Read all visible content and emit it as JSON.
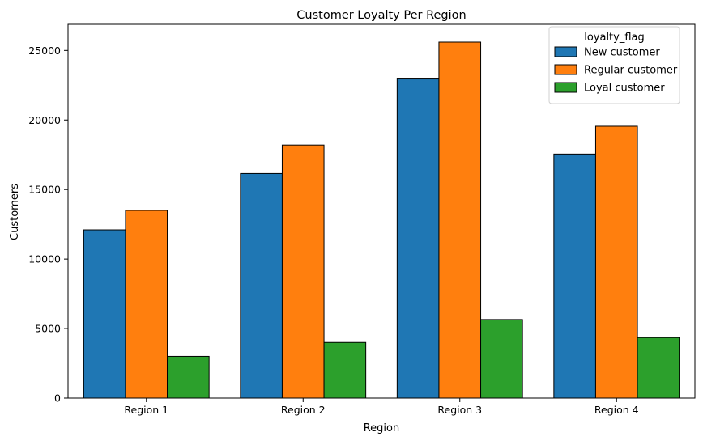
{
  "chart_data": {
    "type": "bar",
    "title": "Customer Loyalty Per Region",
    "xlabel": "Region",
    "ylabel": "Customers",
    "categories": [
      "Region 1",
      "Region 2",
      "Region 3",
      "Region 4"
    ],
    "series": [
      {
        "name": "New customer",
        "color": "#1f77b4",
        "values": [
          12100,
          16150,
          22950,
          17550
        ]
      },
      {
        "name": "Regular customer",
        "color": "#ff7f0e",
        "values": [
          13500,
          18200,
          25600,
          19550
        ]
      },
      {
        "name": "Loyal customer",
        "color": "#2ca02c",
        "values": [
          3000,
          4000,
          5650,
          4350
        ]
      }
    ],
    "ylim": [
      0,
      26880
    ],
    "yticks": [
      0,
      5000,
      10000,
      15000,
      20000,
      25000
    ],
    "ytick_labels": [
      "0",
      "5000",
      "10000",
      "15000",
      "20000",
      "25000"
    ],
    "legend": {
      "title": "loyalty_flag",
      "placement": "top-right"
    },
    "grid": false
  }
}
